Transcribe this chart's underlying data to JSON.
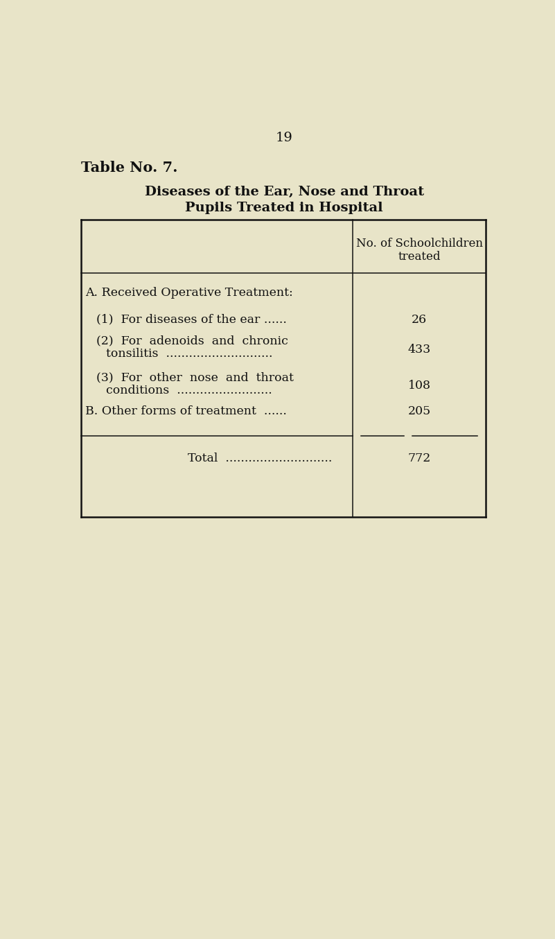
{
  "page_number": "19",
  "table_title_line1": "Diseases of the Ear, Nose and Throat",
  "table_title_line2": "Pupils Treated in Hospital",
  "table_label": "Table No. 7.",
  "col_header_line1": "No. of Schoolchildren",
  "col_header_line2": "treated",
  "bg_color": "#e8e4c8",
  "text_color": "#111111",
  "page_num_fontsize": 14,
  "title_fontsize": 14,
  "table_label_fontsize": 15,
  "header_fontsize": 12,
  "row_fontsize": 12.5,
  "total_fontsize": 12.5
}
